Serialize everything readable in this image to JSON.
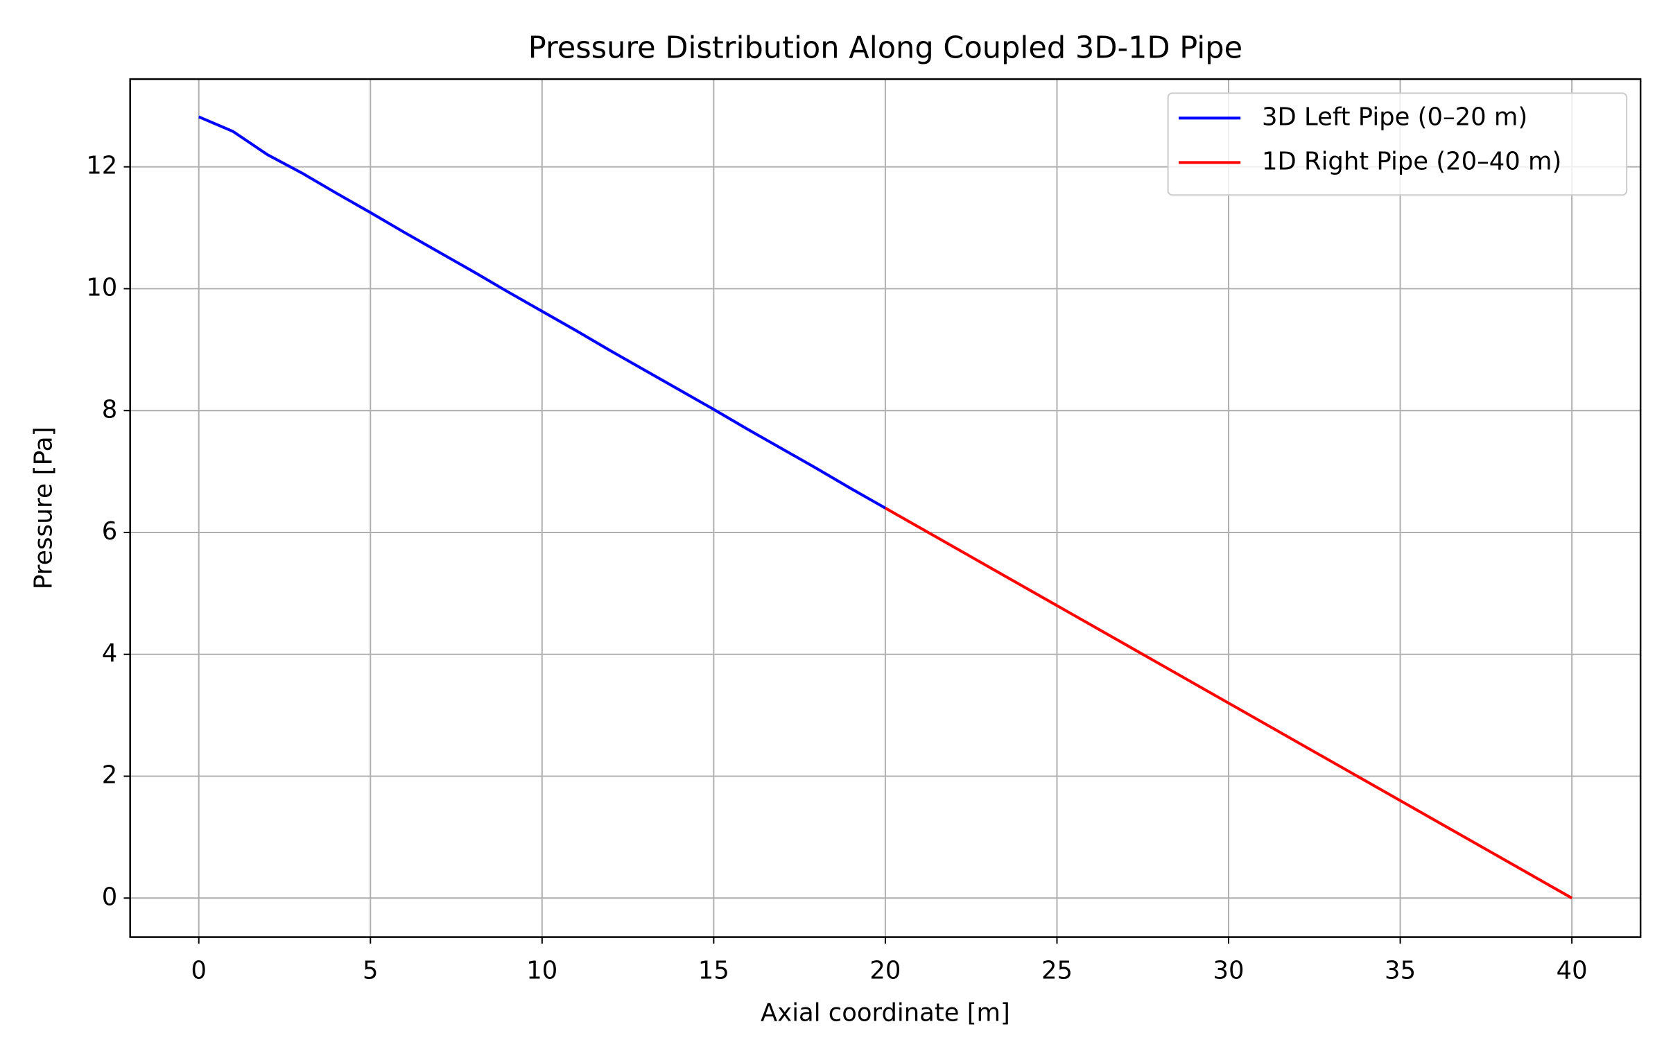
{
  "chart_data": {
    "type": "line",
    "title": "Pressure Distribution Along Coupled 3D-1D Pipe",
    "x_label": "Axial coordinate [m]",
    "y_label": "Pressure [Pa]",
    "series": [
      {
        "name": "3D Left Pipe (0–20 m)",
        "color": "#0000ff",
        "x": [
          0,
          1,
          2,
          3,
          4,
          5,
          6,
          7,
          8,
          9,
          10,
          11,
          12,
          13,
          14,
          15,
          16,
          17,
          18,
          19,
          20
        ],
        "values": [
          12.82,
          12.58,
          12.2,
          11.9,
          11.57,
          11.25,
          10.92,
          10.6,
          10.28,
          9.95,
          9.63,
          9.31,
          8.98,
          8.66,
          8.34,
          8.02,
          7.69,
          7.37,
          7.05,
          6.72,
          6.4
        ]
      },
      {
        "name": "1D Right Pipe (20–40 m)",
        "color": "#ff0000",
        "x": [
          20,
          40
        ],
        "values": [
          6.4,
          0
        ]
      }
    ],
    "xlim": [
      -2,
      42
    ],
    "ylim": [
      -0.64,
      13.44
    ],
    "xticks": [
      0,
      5,
      10,
      15,
      20,
      25,
      30,
      35,
      40
    ],
    "yticks": [
      0,
      2,
      4,
      6,
      8,
      10,
      12
    ],
    "grid": true,
    "legend": "upper right"
  }
}
